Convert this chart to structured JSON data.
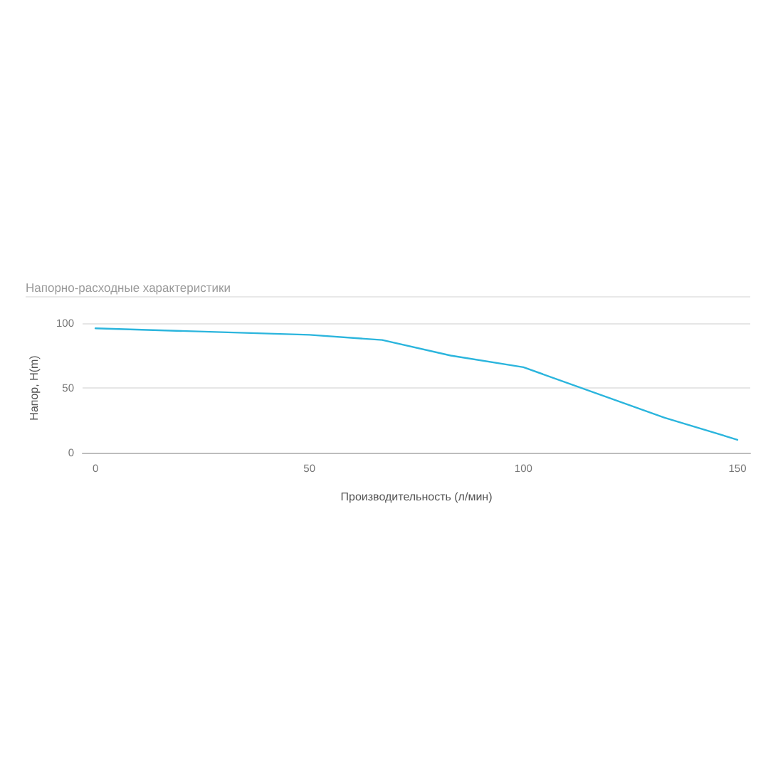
{
  "chart_data": {
    "type": "line",
    "title": "Напорно-расходные характеристики",
    "xlabel": "Производительность (л/мин)",
    "ylabel": "Напор, H(m)",
    "x": [
      0,
      50,
      67,
      83,
      100,
      133,
      150
    ],
    "series": [
      {
        "color": "#2bb5dd",
        "values": [
          96,
          91,
          87,
          75,
          66,
          27,
          10
        ]
      }
    ],
    "xlim": [
      -3,
      153
    ],
    "ylim": [
      0,
      100
    ],
    "xticks": [
      0,
      50,
      100,
      150
    ],
    "yticks": [
      0,
      50,
      100
    ],
    "grid": "y"
  }
}
